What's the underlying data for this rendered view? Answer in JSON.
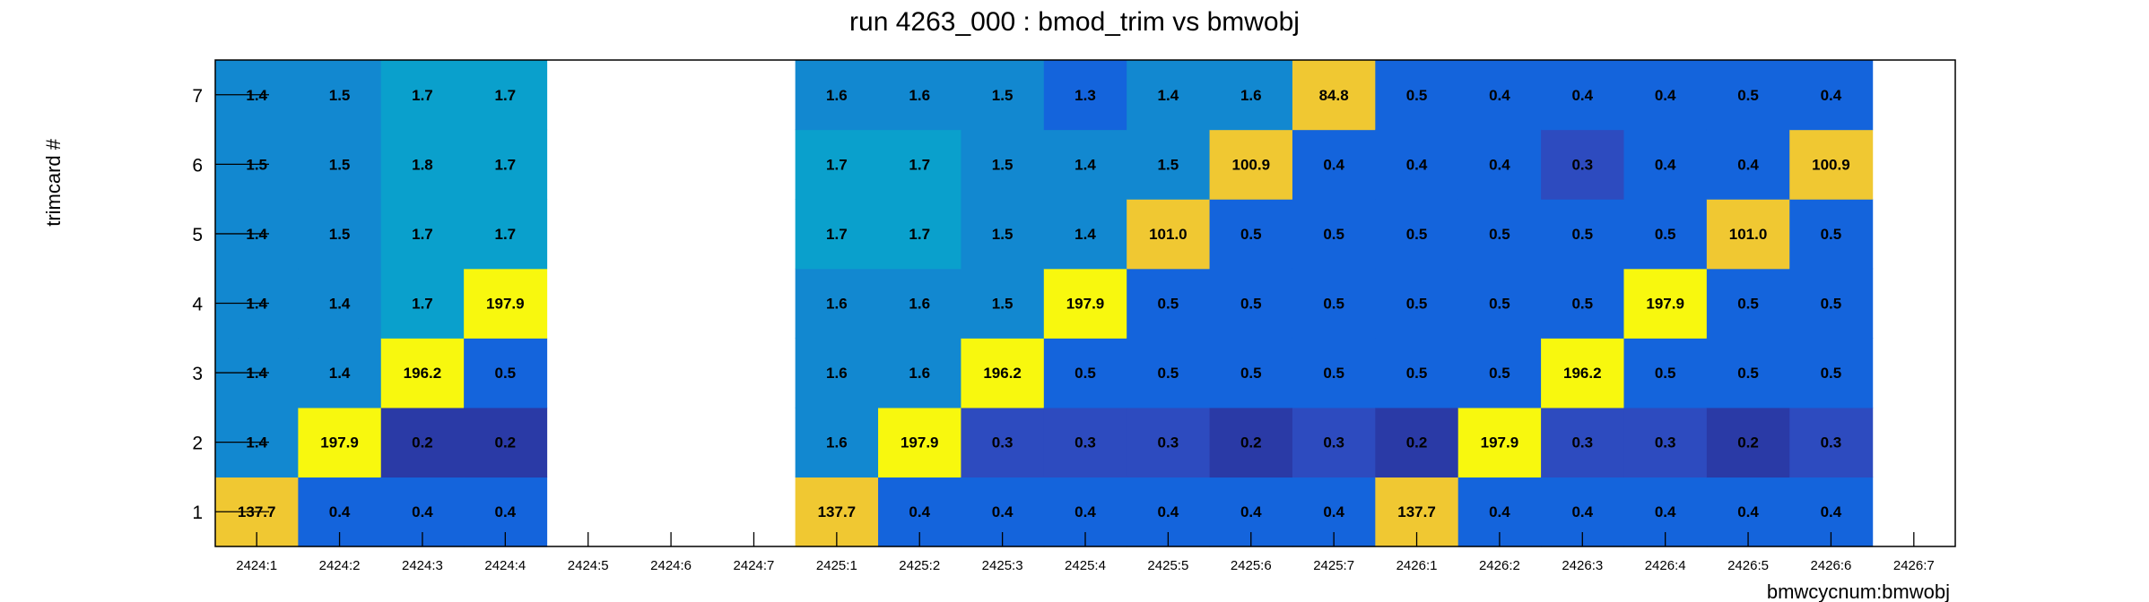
{
  "chart_data": {
    "type": "heatmap",
    "title": "run 4263_000 : bmod_trim vs bmwobj",
    "xlabel": "bmwcycnum:bmwobj",
    "ylabel": "trimcard #",
    "x_categories": [
      "2424:1",
      "2424:2",
      "2424:3",
      "2424:4",
      "2424:5",
      "2424:6",
      "2424:7",
      "2425:1",
      "2425:2",
      "2425:3",
      "2425:4",
      "2425:5",
      "2425:6",
      "2425:7",
      "2426:1",
      "2426:2",
      "2426:3",
      "2426:4",
      "2426:5",
      "2426:6",
      "2426:7"
    ],
    "y_categories": [
      "1",
      "2",
      "3",
      "4",
      "5",
      "6",
      "7"
    ],
    "values": [
      [
        137.7,
        1.4,
        1.4,
        1.4,
        1.4,
        1.5,
        1.4
      ],
      [
        0.4,
        197.9,
        1.4,
        1.4,
        1.5,
        1.5,
        1.5
      ],
      [
        0.4,
        0.2,
        196.2,
        1.7,
        1.7,
        1.8,
        1.7
      ],
      [
        0.4,
        0.2,
        0.5,
        197.9,
        1.7,
        1.7,
        1.7
      ],
      [
        null,
        null,
        null,
        null,
        null,
        null,
        null
      ],
      [
        null,
        null,
        null,
        null,
        null,
        null,
        null
      ],
      [
        null,
        null,
        null,
        null,
        null,
        null,
        null
      ],
      [
        137.7,
        1.6,
        1.6,
        1.6,
        1.7,
        1.7,
        1.6
      ],
      [
        0.4,
        197.9,
        1.6,
        1.6,
        1.7,
        1.7,
        1.6
      ],
      [
        0.4,
        0.3,
        196.2,
        1.5,
        1.5,
        1.5,
        1.5
      ],
      [
        0.4,
        0.3,
        0.5,
        197.9,
        1.4,
        1.4,
        1.3
      ],
      [
        0.4,
        0.3,
        0.5,
        0.5,
        101.0,
        1.5,
        1.4
      ],
      [
        0.4,
        0.2,
        0.5,
        0.5,
        0.5,
        100.9,
        1.6
      ],
      [
        0.4,
        0.3,
        0.5,
        0.5,
        0.5,
        0.4,
        84.8
      ],
      [
        137.7,
        0.2,
        0.5,
        0.5,
        0.5,
        0.4,
        0.5
      ],
      [
        0.4,
        197.9,
        0.5,
        0.5,
        0.5,
        0.4,
        0.4
      ],
      [
        0.4,
        0.3,
        196.2,
        0.5,
        0.5,
        0.3,
        0.4
      ],
      [
        0.4,
        0.3,
        0.5,
        197.9,
        0.5,
        0.4,
        0.4
      ],
      [
        0.4,
        0.2,
        0.5,
        0.5,
        101.0,
        0.4,
        0.5
      ],
      [
        0.4,
        0.3,
        0.5,
        0.5,
        0.5,
        100.9,
        0.4
      ],
      [
        null,
        null,
        null,
        null,
        null,
        null,
        null
      ]
    ],
    "value_format": "one decimal",
    "colors": {
      "very_low": "#2a3aa6",
      "low": "#2d4bbf",
      "mid_low": "#1464dc",
      "mid": "#1288d0",
      "mid_high": "#0aa0cc",
      "high": "#f0c832",
      "max": "#f8f80e"
    },
    "grid": false,
    "legend": "none"
  }
}
